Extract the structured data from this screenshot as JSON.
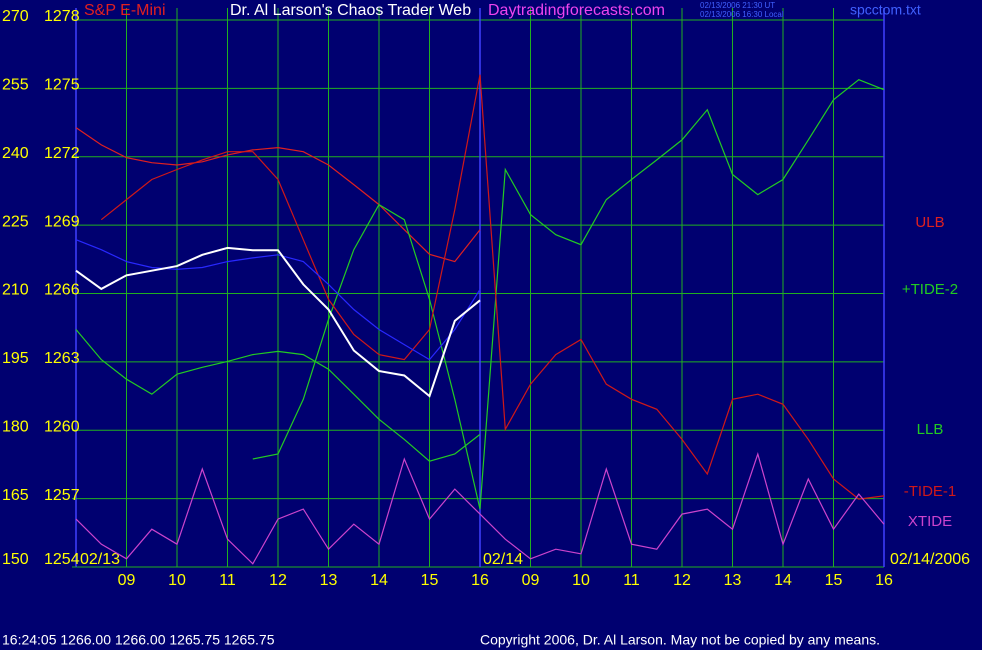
{
  "chart_data": {
    "type": "line",
    "subtitle": "S&P E-Mini",
    "title": "Dr. Al Larson's Chaos Trader Web",
    "website": "Daytradingforecasts.com",
    "timestamps": [
      "02/13/2006 21:30 UT",
      "02/13/2006 16:30 Local"
    ],
    "file": "spcctom.txt",
    "date_labels": [
      "02/13",
      "02/14",
      "02/14/2006"
    ],
    "status_line": "16:24:05  1266.00 1266.00 1265.75 1265.75",
    "copyright": "Copyright 2006, Dr. Al Larson. May not be copied by any means.",
    "x": [
      0,
      0.5,
      1,
      1.5,
      2,
      2.5,
      3,
      3.5,
      4,
      4.5,
      5,
      5.5,
      6,
      6.5,
      7,
      7.5,
      8,
      8.5,
      9,
      9.5,
      10,
      10.5,
      11,
      11.5,
      12,
      12.5,
      13,
      13.5,
      14,
      14.5,
      15,
      15.5,
      16
    ],
    "xlim": [
      0,
      16
    ],
    "xticks": [
      {
        "value": 1,
        "label": "09"
      },
      {
        "value": 2,
        "label": "10"
      },
      {
        "value": 3,
        "label": "11"
      },
      {
        "value": 4,
        "label": "12"
      },
      {
        "value": 5,
        "label": "13"
      },
      {
        "value": 6,
        "label": "14"
      },
      {
        "value": 7,
        "label": "15"
      },
      {
        "value": 8,
        "label": "16"
      },
      {
        "value": 9,
        "label": "09"
      },
      {
        "value": 10,
        "label": "10"
      },
      {
        "value": 11,
        "label": "11"
      },
      {
        "value": 12,
        "label": "12"
      },
      {
        "value": 13,
        "label": "13"
      },
      {
        "value": 14,
        "label": "14"
      },
      {
        "value": 15,
        "label": "15"
      },
      {
        "value": 16,
        "label": "16"
      }
    ],
    "ylim": [
      150,
      270
    ],
    "yticks": [
      270,
      255,
      240,
      225,
      210,
      195,
      180,
      165,
      150
    ],
    "y2lim": [
      1254,
      1278
    ],
    "y2ticks": [
      1278,
      1275,
      1272,
      1269,
      1266,
      1263,
      1260,
      1257,
      1254
    ],
    "grid": true,
    "series": [
      {
        "name": "ULB",
        "color": "#e02020",
        "values": [
          246.4,
          242.6,
          239.8,
          238.7,
          238.2,
          238.9,
          240.4,
          241.5,
          242.0,
          241.1,
          238.2,
          233.9,
          229.5,
          224.0,
          218.6,
          217.0,
          224.0,
          null,
          null,
          null,
          null,
          null,
          null,
          null,
          null,
          null,
          null,
          null,
          null,
          null,
          null,
          null,
          null
        ]
      },
      {
        "name": "+TIDE-2",
        "color": "#22cc22",
        "values": [
          null,
          null,
          null,
          null,
          null,
          null,
          null,
          173.7,
          174.8,
          186.8,
          204.3,
          219.6,
          229.5,
          226.2,
          208.7,
          186.8,
          162.7,
          237.2,
          227.3,
          222.9,
          220.7,
          230.6,
          235.0,
          239.3,
          243.7,
          250.3,
          236.1,
          231.7,
          235.0,
          243.7,
          252.5,
          256.9,
          254.7
        ]
      },
      {
        "name": "LLB",
        "color": "#22cc22",
        "values": [
          202.1,
          195.5,
          191.2,
          187.9,
          192.3,
          193.8,
          195.1,
          196.6,
          197.3,
          196.6,
          193.4,
          187.9,
          182.4,
          178.0,
          173.2,
          174.8,
          179.1,
          null,
          null,
          null,
          null,
          null,
          null,
          null,
          null,
          null,
          null,
          null,
          null,
          null,
          null,
          null,
          null
        ]
      },
      {
        "name": "-TIDE-1",
        "color": "#d01818",
        "values": [
          null,
          226.2,
          230.6,
          235.0,
          237.2,
          239.3,
          241.1,
          241.1,
          235.0,
          221.8,
          208.7,
          201.0,
          196.6,
          195.5,
          202.1,
          228.4,
          258.0,
          180.2,
          190.1,
          196.6,
          199.9,
          190.1,
          186.8,
          184.6,
          178.0,
          170.4,
          186.8,
          187.9,
          185.7,
          178.0,
          169.3,
          164.9,
          165.6
        ]
      },
      {
        "name": "XTIDE",
        "color": "#cc44cc",
        "values": [
          160.5,
          155.0,
          151.8,
          158.3,
          155.0,
          171.5,
          156.1,
          150.7,
          160.5,
          162.7,
          153.9,
          159.4,
          155.0,
          173.7,
          160.5,
          167.1,
          161.6,
          156.1,
          151.8,
          153.9,
          152.9,
          171.5,
          155.0,
          153.9,
          161.6,
          162.7,
          158.3,
          174.8,
          155.0,
          169.3,
          158.3,
          166.0,
          159.4
        ]
      },
      {
        "color": "#2828ff",
        "values": [
          221.8,
          219.6,
          217.0,
          215.7,
          215.3,
          215.7,
          217.0,
          217.8,
          218.5,
          217.0,
          212.0,
          206.5,
          202.1,
          198.8,
          195.5,
          202.1,
          210.9,
          null,
          null,
          null,
          null,
          null,
          null,
          null,
          null,
          null,
          null,
          null,
          null,
          null,
          null,
          null,
          null
        ]
      },
      {
        "color": "#ffffff",
        "axis": "y2",
        "values": [
          1267.0,
          1266.2,
          1266.8,
          1267.0,
          1267.2,
          1267.7,
          1268.0,
          1267.9,
          1267.9,
          1266.4,
          1265.3,
          1263.5,
          1262.6,
          1262.4,
          1261.5,
          1264.8,
          1265.7,
          null,
          null,
          null,
          null,
          null,
          null,
          null,
          null,
          null,
          null,
          null,
          null,
          null,
          null,
          null,
          null
        ]
      }
    ]
  }
}
